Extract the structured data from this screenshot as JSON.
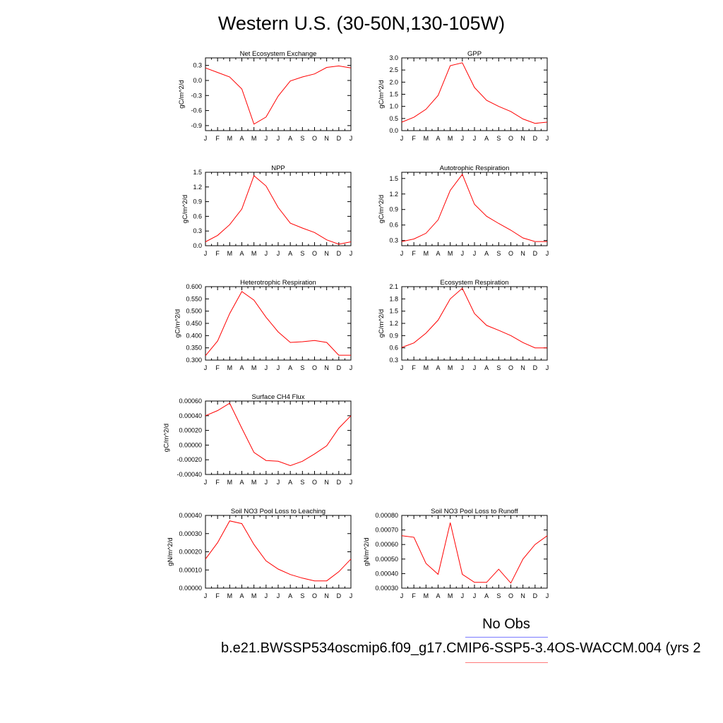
{
  "title": "Western U.S. (30-50N,130-105W)",
  "legend": {
    "no_obs": "No Obs",
    "line_colors": [
      "#7a7aff",
      "#ff7a7a"
    ]
  },
  "case_label": "b.e21.BWSSP534oscmip6.f09_g17.CMIP6-SSP5-3.4OS-WACCM.004 (yrs 2",
  "series_color": "#ff0000",
  "chart_data": [
    {
      "type": "line",
      "title": "Net Ecosystem Exchange",
      "ylabel": "gC/m^2/d",
      "categories": [
        "J",
        "F",
        "M",
        "A",
        "M",
        "J",
        "J",
        "A",
        "S",
        "O",
        "N",
        "D",
        "J"
      ],
      "values": [
        0.25,
        0.16,
        0.07,
        -0.17,
        -0.87,
        -0.73,
        -0.31,
        -0.01,
        0.07,
        0.13,
        0.26,
        0.29,
        0.25
      ],
      "ylim": [
        -1.0,
        0.45
      ],
      "yticks": [
        "0.3",
        "0.0",
        "-0.3",
        "-0.6",
        "-0.9"
      ],
      "ytick_values": [
        0.3,
        0.0,
        -0.3,
        -0.6,
        -0.9
      ]
    },
    {
      "type": "line",
      "title": "GPP",
      "ylabel": "gC/m^2/d",
      "categories": [
        "J",
        "F",
        "M",
        "A",
        "M",
        "J",
        "J",
        "A",
        "S",
        "O",
        "N",
        "D",
        "J"
      ],
      "values": [
        0.35,
        0.55,
        0.88,
        1.45,
        2.68,
        2.8,
        1.78,
        1.25,
        1.0,
        0.79,
        0.48,
        0.3,
        0.35
      ],
      "ylim": [
        0.0,
        3.0
      ],
      "yticks": [
        "3.0",
        "2.5",
        "2.0",
        "1.5",
        "1.0",
        "0.5",
        "0.0"
      ],
      "ytick_values": [
        3.0,
        2.5,
        2.0,
        1.5,
        1.0,
        0.5,
        0.0
      ]
    },
    {
      "type": "line",
      "title": "NPP",
      "ylabel": "gC/m^2/d",
      "categories": [
        "J",
        "F",
        "M",
        "A",
        "M",
        "J",
        "J",
        "A",
        "S",
        "O",
        "N",
        "D",
        "J"
      ],
      "values": [
        0.08,
        0.21,
        0.43,
        0.75,
        1.43,
        1.22,
        0.78,
        0.46,
        0.36,
        0.27,
        0.12,
        0.03,
        0.08
      ],
      "ylim": [
        0.0,
        1.5
      ],
      "yticks": [
        "1.5",
        "1.2",
        "0.9",
        "0.6",
        "0.3",
        "0.0"
      ],
      "ytick_values": [
        1.5,
        1.2,
        0.9,
        0.6,
        0.3,
        0.0
      ]
    },
    {
      "type": "line",
      "title": "Autotrophic Respiration",
      "ylabel": "gC/m^2/d",
      "categories": [
        "J",
        "F",
        "M",
        "A",
        "M",
        "J",
        "J",
        "A",
        "S",
        "O",
        "N",
        "D",
        "J"
      ],
      "values": [
        0.28,
        0.33,
        0.44,
        0.7,
        1.27,
        1.58,
        1.0,
        0.77,
        0.63,
        0.5,
        0.35,
        0.28,
        0.28
      ],
      "ylim": [
        0.2,
        1.62
      ],
      "yticks": [
        "1.5",
        "1.2",
        "0.9",
        "0.6",
        "0.3"
      ],
      "ytick_values": [
        1.5,
        1.2,
        0.9,
        0.6,
        0.3
      ]
    },
    {
      "type": "line",
      "title": "Heterotrophic Respiration",
      "ylabel": "gC/m^2/d",
      "categories": [
        "J",
        "F",
        "M",
        "A",
        "M",
        "J",
        "J",
        "A",
        "S",
        "O",
        "N",
        "D",
        "J"
      ],
      "values": [
        0.318,
        0.378,
        0.49,
        0.58,
        0.545,
        0.475,
        0.415,
        0.372,
        0.375,
        0.38,
        0.372,
        0.32,
        0.32
      ],
      "ylim": [
        0.3,
        0.6
      ],
      "yticks": [
        "0.600",
        "0.550",
        "0.500",
        "0.450",
        "0.400",
        "0.350",
        "0.300"
      ],
      "ytick_values": [
        0.6,
        0.55,
        0.5,
        0.45,
        0.4,
        0.35,
        0.3
      ]
    },
    {
      "type": "line",
      "title": "Ecosystem Respiration",
      "ylabel": "gC/m^2/d",
      "categories": [
        "J",
        "F",
        "M",
        "A",
        "M",
        "J",
        "J",
        "A",
        "S",
        "O",
        "N",
        "D",
        "J"
      ],
      "values": [
        0.61,
        0.72,
        0.96,
        1.28,
        1.8,
        2.06,
        1.44,
        1.15,
        1.03,
        0.9,
        0.73,
        0.6,
        0.6
      ],
      "ylim": [
        0.3,
        2.1
      ],
      "yticks": [
        "2.1",
        "1.8",
        "1.5",
        "1.2",
        "0.9",
        "0.6",
        "0.3"
      ],
      "ytick_values": [
        2.1,
        1.8,
        1.5,
        1.2,
        0.9,
        0.6,
        0.3
      ]
    },
    {
      "type": "line",
      "title": "Surface CH4 Flux",
      "ylabel": "gC/m^2/d",
      "categories": [
        "J",
        "F",
        "M",
        "A",
        "M",
        "J",
        "J",
        "A",
        "S",
        "O",
        "N",
        "D",
        "J"
      ],
      "values": [
        0.0004,
        0.00047,
        0.00057,
        0.00023,
        -0.0001,
        -0.00021,
        -0.00022,
        -0.00028,
        -0.00022,
        -0.00012,
        -1e-05,
        0.00023,
        0.0004
      ],
      "ylim": [
        -0.0004,
        0.0006
      ],
      "yticks": [
        "0.00060",
        "0.00040",
        "0.00020",
        "0.00000",
        "-0.00020",
        "-0.00040"
      ],
      "ytick_values": [
        0.0006,
        0.0004,
        0.0002,
        0.0,
        -0.0002,
        -0.0004
      ]
    },
    {
      "type": "line",
      "title": "Soil NO3 Pool Loss to Leaching",
      "ylabel": "gN/m^2/d",
      "categories": [
        "J",
        "F",
        "M",
        "A",
        "M",
        "J",
        "J",
        "A",
        "S",
        "O",
        "N",
        "D",
        "J"
      ],
      "values": [
        0.00016,
        0.00025,
        0.00037,
        0.000355,
        0.00024,
        0.00015,
        0.000105,
        7.5e-05,
        5.5e-05,
        4e-05,
        4e-05,
        9e-05,
        0.00016
      ],
      "ylim": [
        0.0,
        0.0004
      ],
      "yticks": [
        "0.00040",
        "0.00030",
        "0.00020",
        "0.00010",
        "0.00000"
      ],
      "ytick_values": [
        0.0004,
        0.0003,
        0.0002,
        0.0001,
        0.0
      ]
    },
    {
      "type": "line",
      "title": "Soil NO3 Pool Loss to Runoff",
      "ylabel": "gN/m^2/d",
      "categories": [
        "J",
        "F",
        "M",
        "A",
        "M",
        "J",
        "J",
        "A",
        "S",
        "O",
        "N",
        "D",
        "J"
      ],
      "values": [
        0.00066,
        0.00065,
        0.00047,
        0.000395,
        0.00075,
        0.000395,
        0.00034,
        0.00034,
        0.00043,
        0.000335,
        0.0005,
        0.0006,
        0.00066
      ],
      "ylim": [
        0.0003,
        0.0008
      ],
      "yticks": [
        "0.00080",
        "0.00070",
        "0.00060",
        "0.00050",
        "0.00040",
        "0.00030"
      ],
      "ytick_values": [
        0.0008,
        0.0007,
        0.0006,
        0.0005,
        0.0004,
        0.0003
      ]
    }
  ]
}
